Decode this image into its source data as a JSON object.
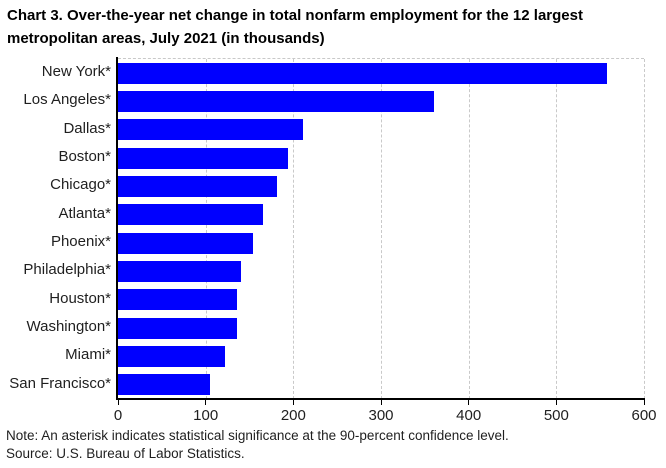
{
  "chart_data": {
    "type": "bar",
    "orientation": "horizontal",
    "title": "Chart 3. Over-the-year net change in total nonfarm employment for the 12 largest metropolitan areas, July 2021 (in thousands)",
    "categories": [
      "New York*",
      "Los Angeles*",
      "Dallas*",
      "Boston*",
      "Chicago*",
      "Atlanta*",
      "Phoenix*",
      "Philadelphia*",
      "Houston*",
      "Washington*",
      "Miami*",
      "San Francisco*"
    ],
    "values": [
      558,
      360,
      211,
      194,
      181,
      165,
      154,
      140,
      136,
      136,
      122,
      105
    ],
    "units": "thousands",
    "xlabel": "",
    "ylabel": "",
    "xlim": [
      0,
      600
    ],
    "xticks": [
      0,
      100,
      200,
      300,
      400,
      500,
      600
    ],
    "grid": "vertical-dashed",
    "legend": "none",
    "bar_color": "#0000ff"
  },
  "footer": {
    "note": "Note: An asterisk indicates statistical significance at the 90-percent confidence level.",
    "source": "Source: U.S. Bureau of Labor Statistics."
  },
  "colors": {
    "bar": "#0000ff",
    "axis": "#000000",
    "gridline": "#c9c9c9",
    "text": "#000000",
    "background": "#ffffff"
  }
}
